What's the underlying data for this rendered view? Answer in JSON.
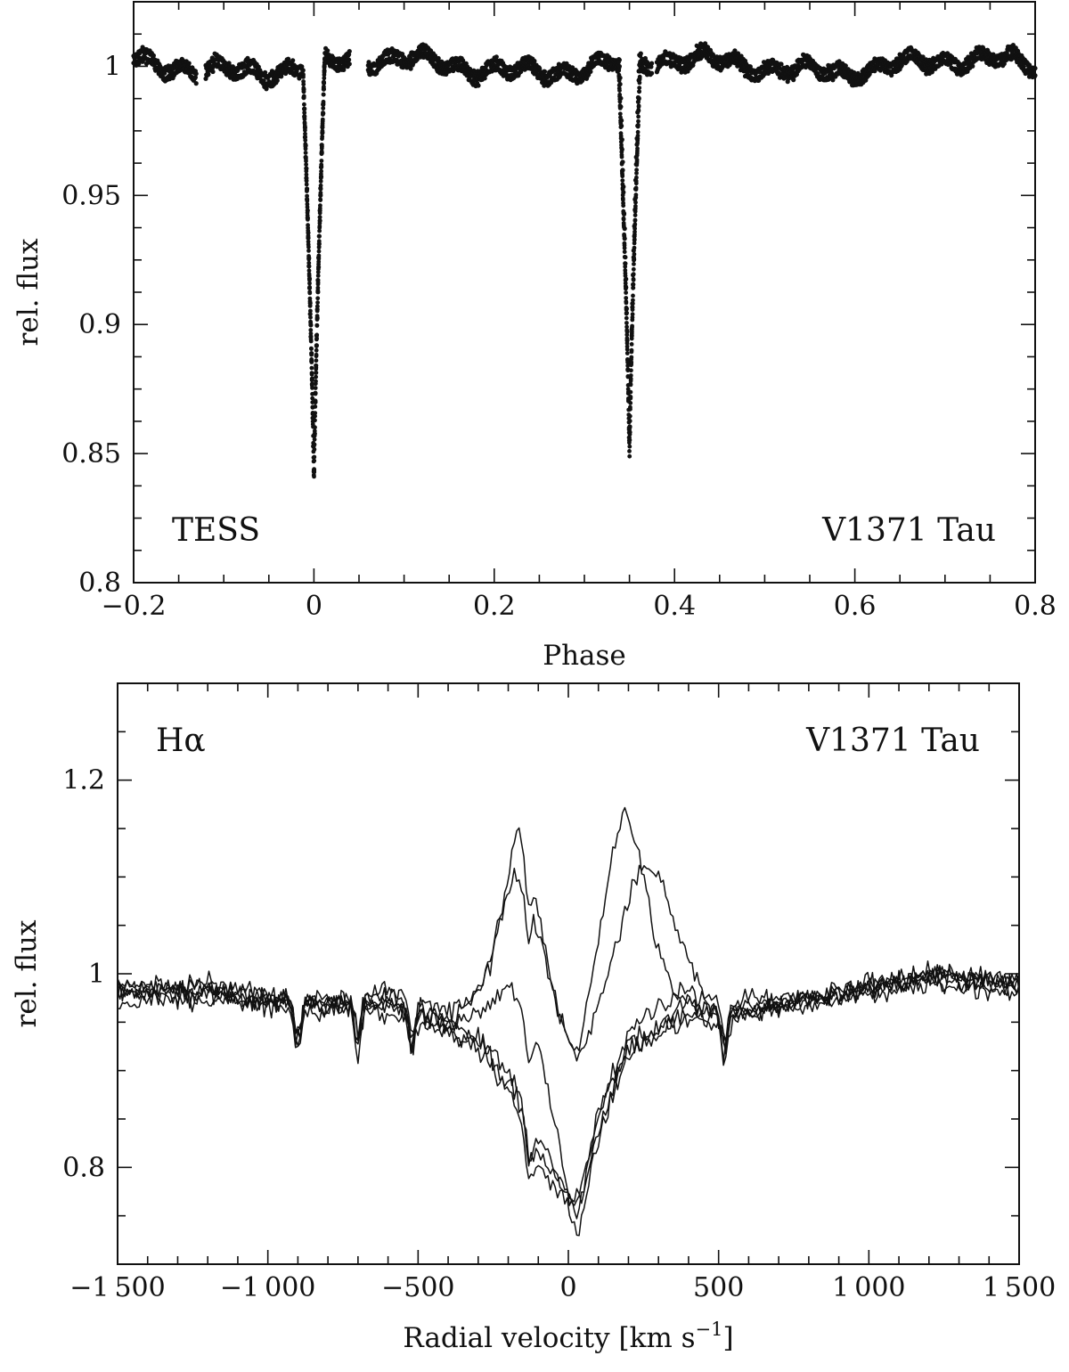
{
  "chart_data": [
    {
      "type": "scatter",
      "xlabel": "Phase",
      "ylabel": "rel. flux",
      "xlim": [
        -0.2,
        0.8
      ],
      "ylim": [
        0.8,
        1.025
      ],
      "xticks": [
        -0.2,
        0,
        0.2,
        0.4,
        0.6,
        0.8
      ],
      "xtick_labels": [
        "−0.2",
        "0",
        "0.2",
        "0.4",
        "0.6",
        "0.8"
      ],
      "yticks": [
        0.8,
        0.85,
        0.9,
        0.95,
        1
      ],
      "ytick_labels": [
        "0.8",
        "0.85",
        "0.9",
        "0.95",
        "1"
      ],
      "annotations": [
        "TESS",
        "V1371 Tau"
      ],
      "baseline_flux": 1.0,
      "eclipses": [
        {
          "phase": 0.0,
          "min_flux": 0.836
        },
        {
          "phase": 0.35,
          "min_flux": 0.844
        }
      ],
      "color": "#111111",
      "grid": false
    },
    {
      "type": "line",
      "xlabel": "Radial velocity [km s",
      "xlabel_superscript": "−1",
      "xlabel_suffix": "]",
      "ylabel": "rel. flux",
      "xlim": [
        -1500,
        1500
      ],
      "ylim": [
        0.7,
        1.3
      ],
      "xticks": [
        -1500,
        -1000,
        -500,
        0,
        500,
        1000,
        1500
      ],
      "xtick_labels": [
        "−1 500",
        "−1 000",
        "−500",
        "0",
        "500",
        "1 000",
        "1 500"
      ],
      "yticks": [
        0.8,
        1,
        1.2
      ],
      "ytick_labels": [
        "0.8",
        "1",
        "1.2"
      ],
      "annotations": [
        "Hα",
        "V1371 Tau"
      ],
      "series": [
        {
          "x": [
            -1500,
            -1200,
            -900,
            -600,
            -400,
            -300,
            -250,
            -200,
            -170,
            -120,
            -50,
            0,
            30,
            80,
            150,
            190,
            230,
            280,
            350,
            450,
            600,
            900,
            1200,
            1500
          ],
          "y": [
            0.98,
            0.99,
            0.97,
            0.97,
            0.95,
            0.98,
            1.02,
            1.1,
            1.15,
            1.1,
            0.98,
            0.93,
            0.91,
            1.0,
            1.13,
            1.17,
            1.13,
            1.05,
            0.98,
            0.96,
            0.96,
            0.98,
            1.0,
            0.99
          ]
        },
        {
          "x": [
            -1500,
            -1200,
            -900,
            -600,
            -400,
            -300,
            -250,
            -200,
            -170,
            -120,
            -50,
            0,
            30,
            80,
            150,
            200,
            250,
            300,
            350,
            450,
            600,
            900,
            1200,
            1500
          ],
          "y": [
            0.99,
            0.98,
            0.97,
            0.98,
            0.96,
            0.98,
            1.03,
            1.09,
            1.1,
            1.07,
            0.98,
            0.93,
            0.91,
            0.95,
            1.02,
            1.08,
            1.12,
            1.1,
            1.05,
            0.98,
            0.96,
            0.98,
            1.0,
            0.99
          ]
        },
        {
          "x": [
            -1500,
            -1200,
            -900,
            -600,
            -400,
            -300,
            -200,
            -100,
            -50,
            0,
            50,
            100,
            200,
            300,
            400,
            500,
            600,
            900,
            1200,
            1500
          ],
          "y": [
            0.98,
            0.99,
            0.97,
            0.97,
            0.95,
            0.96,
            0.99,
            0.93,
            0.85,
            0.77,
            0.77,
            0.86,
            0.94,
            0.97,
            0.98,
            0.96,
            0.97,
            0.98,
            1.0,
            0.99
          ]
        },
        {
          "x": [
            -1500,
            -1200,
            -900,
            -600,
            -400,
            -300,
            -200,
            -100,
            0,
            30,
            100,
            200,
            300,
            400,
            500,
            600,
            900,
            1200,
            1500
          ],
          "y": [
            0.99,
            0.98,
            0.97,
            0.98,
            0.95,
            0.93,
            0.89,
            0.82,
            0.77,
            0.76,
            0.85,
            0.93,
            0.95,
            0.97,
            0.96,
            0.97,
            0.98,
            1.0,
            0.99
          ]
        },
        {
          "x": [
            -1500,
            -1200,
            -900,
            -600,
            -400,
            -300,
            -200,
            -100,
            0,
            30,
            100,
            200,
            300,
            400,
            500,
            600,
            900,
            1200,
            1500
          ],
          "y": [
            0.97,
            0.98,
            0.96,
            0.97,
            0.94,
            0.92,
            0.88,
            0.8,
            0.76,
            0.73,
            0.83,
            0.92,
            0.94,
            0.96,
            0.95,
            0.96,
            0.97,
            0.99,
            0.98
          ]
        },
        {
          "x": [
            -1500,
            -1200,
            -900,
            -600,
            -400,
            -300,
            -200,
            -100,
            0,
            30,
            100,
            200,
            300,
            400,
            500,
            600,
            900,
            1200,
            1500
          ],
          "y": [
            0.98,
            0.97,
            0.97,
            0.96,
            0.94,
            0.93,
            0.9,
            0.83,
            0.77,
            0.75,
            0.84,
            0.92,
            0.94,
            0.95,
            0.96,
            0.96,
            0.98,
            0.99,
            0.99
          ]
        }
      ],
      "color": "#111111",
      "grid": false
    }
  ]
}
